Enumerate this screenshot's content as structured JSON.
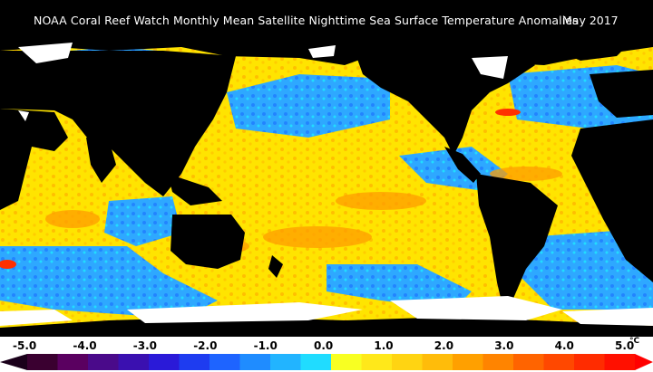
{
  "title": {
    "text": "NOAA Coral Reef Watch Monthly Mean Satellite Nighttime Sea Surface Temperature Anomalies",
    "date": "May 2017"
  },
  "map": {
    "description_colors": {
      "land": "#000000",
      "ice": "#ffffff",
      "warm_anomaly": "#ffd400",
      "cool_anomaly": "#2ea8ff"
    }
  },
  "legend": {
    "ticks": [
      "-5.0",
      "-4.0",
      "-3.0",
      "-2.0",
      "-1.0",
      "0.0",
      "1.0",
      "2.0",
      "3.0",
      "4.0",
      "5.0"
    ],
    "unit": "°C",
    "colors": [
      "#3a0030",
      "#5a0060",
      "#4a0a8a",
      "#3a10b0",
      "#2a1ad8",
      "#1e3cf0",
      "#1e64ff",
      "#1f8cff",
      "#22b4ff",
      "#20dcff",
      "#f8ff22",
      "#ffe81a",
      "#ffd412",
      "#ffbc0a",
      "#ffa000",
      "#ff8400",
      "#ff6400",
      "#ff4800",
      "#ff2c00",
      "#ff1000"
    ]
  }
}
